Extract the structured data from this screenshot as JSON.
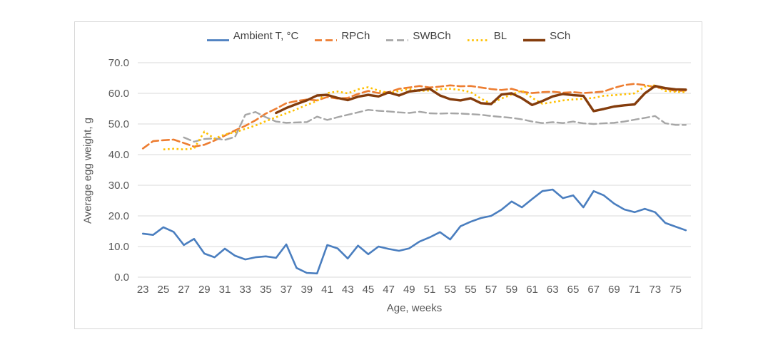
{
  "chart": {
    "legend": {
      "items": [
        {
          "label": "Ambient T, °C"
        },
        {
          "label": "RPCh"
        },
        {
          "label": "SWBCh"
        },
        {
          "label": "BL"
        },
        {
          "label": "SCh"
        }
      ]
    },
    "y_axis": {
      "title": "Average egg weight, g",
      "ticks": [
        "0.0",
        "10.0",
        "20.0",
        "30.0",
        "40.0",
        "50.0",
        "60.0",
        "70.0"
      ]
    },
    "x_axis": {
      "title": "Age, weeks",
      "tick_labels": [
        23,
        25,
        27,
        29,
        31,
        33,
        35,
        37,
        39,
        41,
        43,
        45,
        47,
        49,
        51,
        53,
        55,
        57,
        59,
        61,
        63,
        65,
        67,
        69,
        71,
        73,
        75
      ]
    },
    "colors": {
      "gridline": "#d9d9d9",
      "tick_text": "#595959",
      "legend_text": "#404040"
    }
  },
  "chart_data": {
    "type": "line",
    "title": "",
    "xlabel": "Age, weeks",
    "ylabel": "Average egg weight, g",
    "ylim": [
      0,
      70
    ],
    "grid": "horizontal",
    "legend_position": "top",
    "x": [
      23,
      24,
      25,
      26,
      27,
      28,
      29,
      30,
      31,
      32,
      33,
      34,
      35,
      36,
      37,
      38,
      39,
      40,
      41,
      42,
      43,
      44,
      45,
      46,
      47,
      48,
      49,
      50,
      51,
      52,
      53,
      54,
      55,
      56,
      57,
      58,
      59,
      60,
      61,
      62,
      63,
      64,
      65,
      66,
      67,
      68,
      69,
      70,
      71,
      72,
      73,
      74,
      75,
      76
    ],
    "series": [
      {
        "name": "Ambient T, °C",
        "color": "#4a7ebf",
        "style": "solid",
        "values": [
          14.2,
          13.8,
          16.3,
          14.8,
          10.5,
          12.5,
          7.7,
          6.5,
          9.3,
          7.0,
          5.8,
          6.5,
          6.8,
          6.3,
          10.7,
          3.0,
          1.4,
          1.2,
          10.5,
          9.4,
          6.1,
          10.3,
          7.5,
          10.0,
          9.2,
          8.6,
          9.4,
          11.6,
          13.0,
          14.7,
          12.3,
          16.6,
          18.1,
          19.3,
          20.0,
          22.0,
          24.7,
          22.8,
          25.5,
          28.1,
          28.6,
          25.8,
          26.7,
          22.8,
          28.1,
          26.7,
          24.0,
          22.1,
          21.2,
          22.3,
          21.2,
          17.7,
          16.5,
          15.3
        ]
      },
      {
        "name": "RPCh",
        "color": "#ed7d31",
        "style": "dashed",
        "values": [
          42.0,
          44.4,
          44.7,
          44.9,
          43.8,
          42.6,
          43.2,
          44.6,
          46.2,
          47.9,
          49.4,
          51.2,
          53.4,
          55.0,
          56.8,
          57.5,
          58.0,
          57.7,
          58.8,
          58.3,
          58.5,
          59.8,
          60.8,
          60.1,
          60.4,
          61.5,
          61.9,
          62.4,
          61.9,
          62.2,
          62.6,
          62.3,
          62.4,
          61.9,
          61.4,
          61.1,
          61.5,
          60.5,
          60.1,
          60.4,
          60.5,
          60.2,
          60.4,
          60.1,
          60.3,
          60.6,
          61.8,
          62.7,
          63.1,
          62.7,
          62.0,
          61.5,
          60.8,
          60.9
        ]
      },
      {
        "name": "SWBCh",
        "color": "#a6a6a6",
        "style": "dashed",
        "values": [
          null,
          null,
          null,
          null,
          45.6,
          44.2,
          45.1,
          45.3,
          44.8,
          45.8,
          53.0,
          53.9,
          52.2,
          50.8,
          50.4,
          50.5,
          50.6,
          52.4,
          51.3,
          52.2,
          53.0,
          53.8,
          54.6,
          54.3,
          54.1,
          53.8,
          53.6,
          54.0,
          53.5,
          53.4,
          53.5,
          53.4,
          53.2,
          53.0,
          52.6,
          52.3,
          52.0,
          51.5,
          50.8,
          50.3,
          50.6,
          50.3,
          50.8,
          50.2,
          50.0,
          50.2,
          50.4,
          50.8,
          51.4,
          52.0,
          52.6,
          50.2,
          49.7,
          49.7
        ]
      },
      {
        "name": "BL",
        "color": "#ffc000",
        "style": "dotted",
        "values": [
          null,
          null,
          41.7,
          41.9,
          41.7,
          42.0,
          47.5,
          45.2,
          46.6,
          47.3,
          48.4,
          49.5,
          50.9,
          52.2,
          53.5,
          54.8,
          56.2,
          57.5,
          60.1,
          60.6,
          60.0,
          61.3,
          62.0,
          60.9,
          60.1,
          60.8,
          61.4,
          60.8,
          60.9,
          61.3,
          61.5,
          61.1,
          60.4,
          58.3,
          56.6,
          58.3,
          59.6,
          60.9,
          58.5,
          56.6,
          57.1,
          57.7,
          58.0,
          58.2,
          58.5,
          59.2,
          59.4,
          59.7,
          60.0,
          62.2,
          62.6,
          60.8,
          60.5,
          60.4
        ]
      },
      {
        "name": "SCh",
        "color": "#843c0c",
        "style": "solid",
        "values": [
          null,
          null,
          null,
          null,
          null,
          null,
          null,
          null,
          null,
          null,
          null,
          null,
          null,
          53.6,
          55.2,
          56.5,
          57.7,
          59.3,
          59.5,
          58.5,
          57.8,
          58.9,
          59.5,
          59.0,
          60.3,
          59.3,
          60.6,
          61.0,
          61.5,
          59.3,
          58.1,
          57.7,
          58.4,
          56.8,
          56.5,
          59.6,
          60.0,
          58.4,
          56.2,
          57.5,
          59.0,
          59.8,
          59.4,
          59.2,
          54.2,
          54.9,
          55.7,
          56.1,
          56.4,
          60.0,
          62.4,
          61.7,
          61.3,
          61.2
        ]
      }
    ]
  }
}
